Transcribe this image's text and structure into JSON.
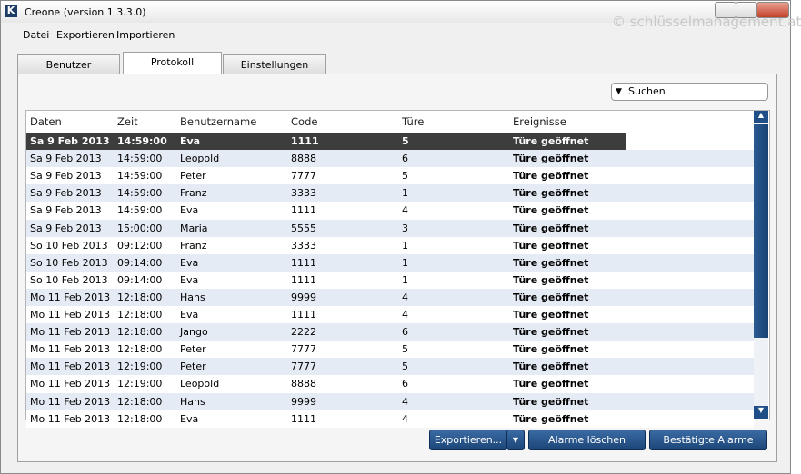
{
  "window": {
    "title": "Creone (version 1.3.3.0)",
    "watermark": "© schlüsselmanagement.at"
  },
  "menu": [
    "Datei",
    "Exportieren",
    "Importieren"
  ],
  "tabs": [
    "Benutzer",
    "Protokoll",
    "Einstellungen"
  ],
  "search": "Suchen",
  "table": {
    "headers": [
      "Daten",
      "Zeit",
      "Benutzername",
      "Code",
      "Türe",
      "Ereignisse"
    ],
    "rows": [
      [
        "Sa 9 Feb 2013",
        "14:59:00",
        "Eva",
        "1111",
        "5",
        "Türe geöffnet"
      ],
      [
        "Sa 9 Feb 2013",
        "14:59:00",
        "Leopold",
        "8888",
        "6",
        "Türe geöffnet"
      ],
      [
        "Sa 9 Feb 2013",
        "14:59:00",
        "Peter",
        "7777",
        "5",
        "Türe geöffnet"
      ],
      [
        "Sa 9 Feb 2013",
        "14:59:00",
        "Franz",
        "3333",
        "1",
        "Türe geöffnet"
      ],
      [
        "Sa 9 Feb 2013",
        "14:59:00",
        "Eva",
        "1111",
        "4",
        "Türe geöffnet"
      ],
      [
        "Sa 9 Feb 2013",
        "15:00:00",
        "Maria",
        "5555",
        "3",
        "Türe geöffnet"
      ],
      [
        "So 10 Feb 2013",
        "09:12:00",
        "Franz",
        "3333",
        "1",
        "Türe geöffnet"
      ],
      [
        "So 10 Feb 2013",
        "09:14:00",
        "Eva",
        "1111",
        "1",
        "Türe geöffnet"
      ],
      [
        "So 10 Feb 2013",
        "09:14:00",
        "Eva",
        "1111",
        "1",
        "Türe geöffnet"
      ],
      [
        "Mo 11 Feb 2013",
        "12:18:00",
        "Hans",
        "9999",
        "4",
        "Türe geöffnet"
      ],
      [
        "Mo 11 Feb 2013",
        "12:18:00",
        "Eva",
        "1111",
        "4",
        "Türe geöffnet"
      ],
      [
        "Mo 11 Feb 2013",
        "12:18:00",
        "Jango",
        "2222",
        "6",
        "Türe geöffnet"
      ],
      [
        "Mo 11 Feb 2013",
        "12:18:00",
        "Peter",
        "7777",
        "5",
        "Türe geöffnet"
      ],
      [
        "Mo 11 Feb 2013",
        "12:19:00",
        "Peter",
        "7777",
        "5",
        "Türe geöffnet"
      ],
      [
        "Mo 11 Feb 2013",
        "12:19:00",
        "Leopold",
        "8888",
        "6",
        "Türe geöffnet"
      ],
      [
        "Mo 11 Feb 2013",
        "12:18:00",
        "Hans",
        "9999",
        "4",
        "Türe geöffnet"
      ],
      [
        "Mo 11 Feb 2013",
        "12:18:00",
        "Eva",
        "1111",
        "4",
        "Türe geöffnet"
      ]
    ]
  },
  "buttons": [
    "Exportieren...",
    "Alarme löschen",
    "Bestätigte Alarme"
  ]
}
